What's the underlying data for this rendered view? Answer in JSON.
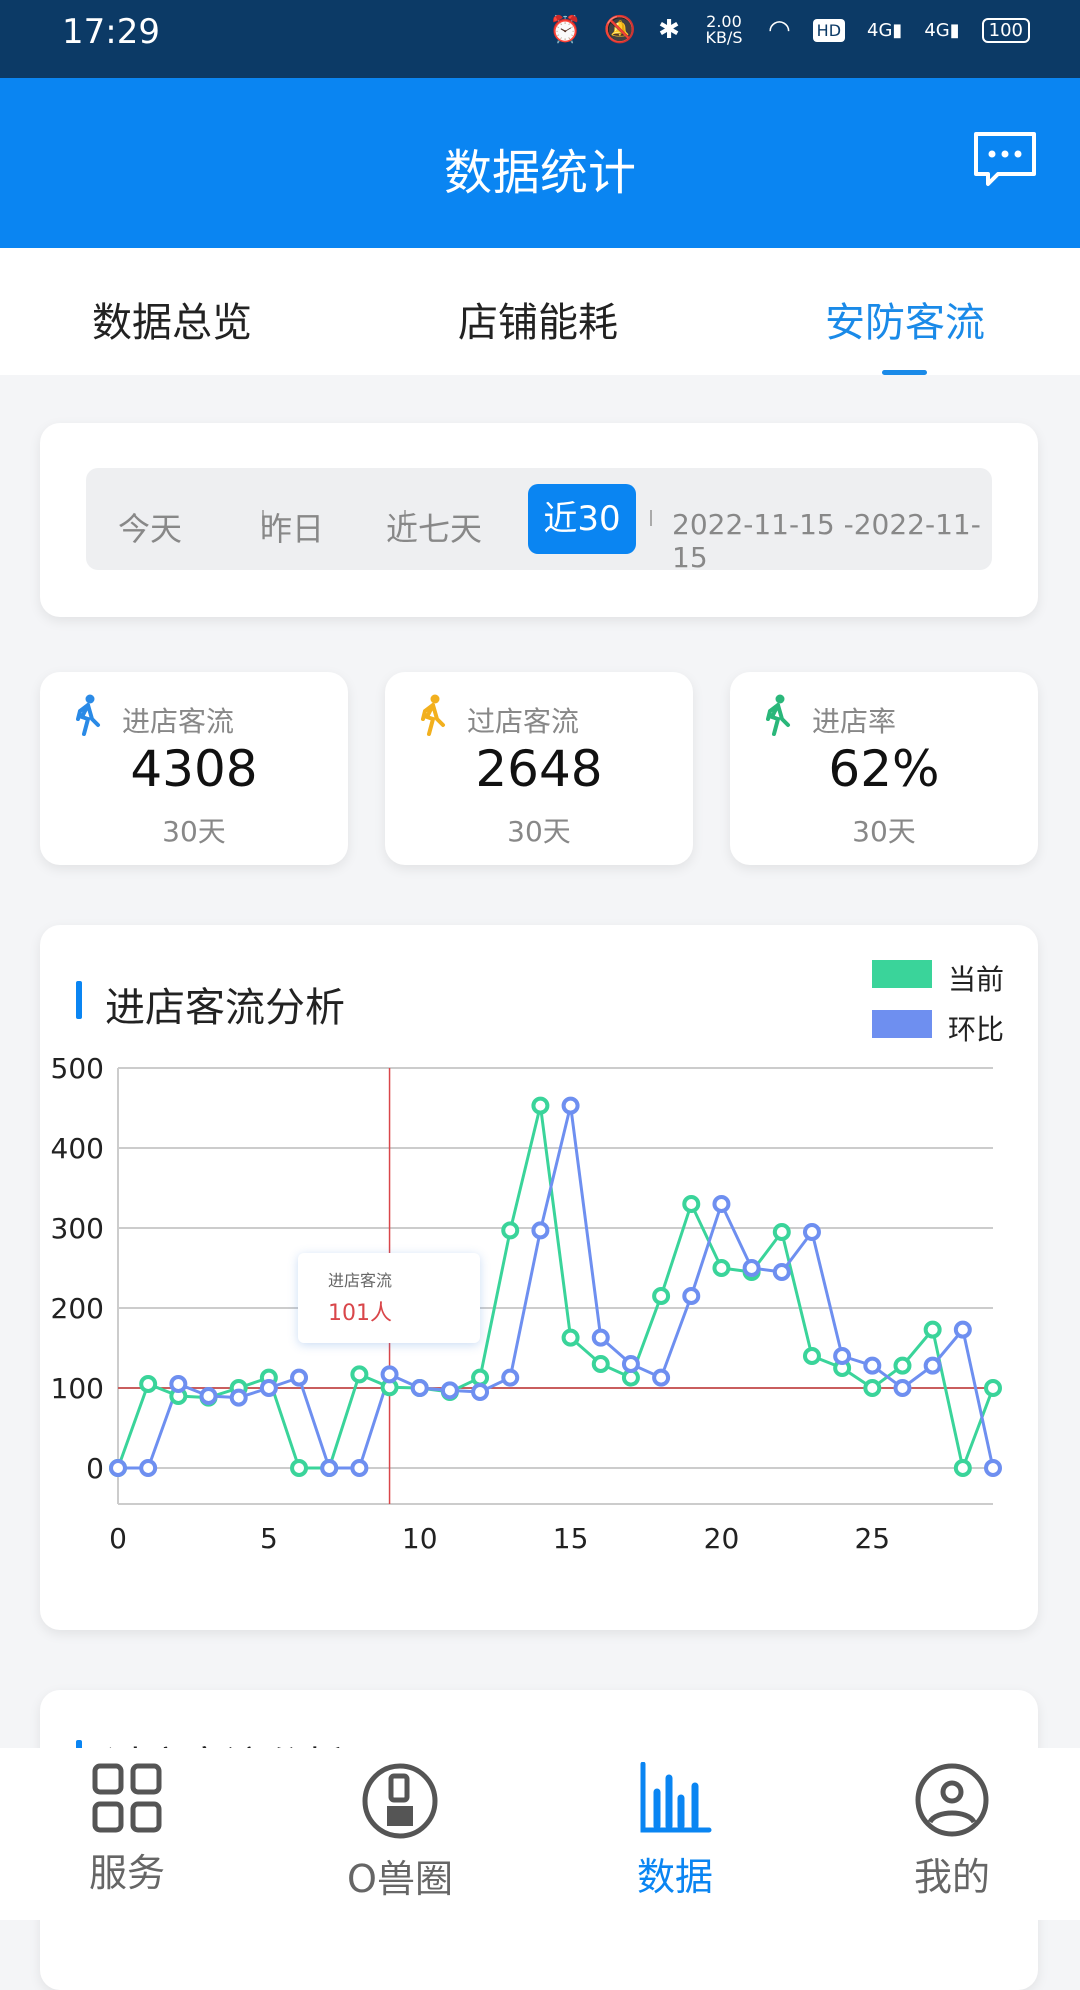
{
  "status_bar": {
    "time": "17:29",
    "net_speed": "2.00 KB/S",
    "battery": "100",
    "icons": [
      "alarm-icon",
      "vibrate-icon",
      "bluetooth-icon",
      "wifi-icon",
      "hd-icon",
      "signal-4g-icon",
      "signal-4g-icon",
      "battery-icon"
    ]
  },
  "header": {
    "title": "数据统计",
    "action_icon": "message-icon"
  },
  "tabs": [
    {
      "label": "数据总览"
    },
    {
      "label": "店铺能耗"
    },
    {
      "label": "安防客流",
      "active": true
    }
  ],
  "date_filter": {
    "options": [
      "今天",
      "昨日",
      "近七天",
      "近30"
    ],
    "selected": "近30",
    "range": "2022-11-15 -2022-11-15"
  },
  "stats": [
    {
      "label": "进店客流",
      "value": "4308",
      "period": "30天",
      "icon": "walking-person-icon",
      "color": "#2a8ae6"
    },
    {
      "label": "过店客流",
      "value": "2648",
      "period": "30天",
      "icon": "walking-person-icon",
      "color": "#f2b01e"
    },
    {
      "label": "进店率",
      "value": "62%",
      "period": "30天",
      "icon": "walking-person-icon",
      "color": "#2ab77a"
    }
  ],
  "chart_card": {
    "title": "进店客流分析",
    "tooltip": {
      "label": "进店客流",
      "value": "101人"
    }
  },
  "chart_data": {
    "type": "line",
    "x": [
      0,
      1,
      2,
      3,
      4,
      5,
      6,
      7,
      8,
      9,
      10,
      11,
      12,
      13,
      14,
      15,
      16,
      17,
      18,
      19,
      20,
      21,
      22,
      23,
      24,
      25,
      26,
      27,
      28,
      29
    ],
    "xticks": [
      "0",
      "5",
      "10",
      "15",
      "20",
      "25"
    ],
    "yticks": [
      "0",
      "100",
      "200",
      "300",
      "400",
      "500"
    ],
    "ylim": [
      -45,
      500
    ],
    "grid": true,
    "legend": "top-right",
    "markline_y": 100,
    "crosshair_x": 9,
    "series": [
      {
        "name": "当前",
        "color": "#3ad49a",
        "values": [
          0,
          105,
          90,
          88,
          100,
          113,
          0,
          0,
          117,
          101,
          100,
          95,
          113,
          297,
          453,
          163,
          130,
          113,
          215,
          330,
          250,
          245,
          295,
          140,
          125,
          100,
          128,
          173,
          0,
          100
        ]
      },
      {
        "name": "环比",
        "color": "#6e8ff0",
        "values": [
          0,
          0,
          105,
          90,
          88,
          100,
          113,
          0,
          0,
          117,
          100,
          97,
          95,
          113,
          297,
          453,
          163,
          130,
          113,
          215,
          330,
          250,
          245,
          295,
          140,
          128,
          100,
          128,
          173,
          0
        ]
      }
    ]
  },
  "second_card": {
    "title": "过店客流分析"
  },
  "bottom_nav": [
    {
      "label": "服务",
      "icon": "grid-icon"
    },
    {
      "label": "O兽圈",
      "icon": "community-icon"
    },
    {
      "label": "数据",
      "icon": "bar-chart-icon",
      "active": true
    },
    {
      "label": "我的",
      "icon": "user-icon"
    }
  ]
}
